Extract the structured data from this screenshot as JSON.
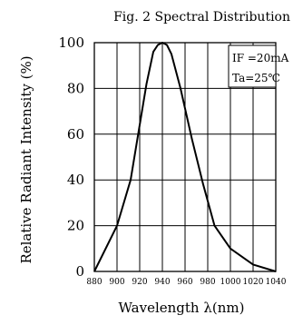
{
  "chart_data": {
    "type": "line",
    "title": "Fig. 2 Spectral Distribution",
    "xlabel": "Wavelength λ(nm)",
    "ylabel": "Relative Radiant Intensity (%)",
    "xlim": [
      880,
      1040
    ],
    "ylim": [
      0,
      100
    ],
    "xticks": [
      "880",
      "900",
      "920",
      "940",
      "960",
      "980",
      "1000",
      "1020",
      "1040"
    ],
    "yticks": [
      "0",
      "20",
      "40",
      "60",
      "80",
      "100"
    ],
    "grid": true,
    "annotations": [
      "IF =20mA",
      "Ta=25℃"
    ],
    "series": [
      {
        "x": [
          880,
          900,
          912,
          920,
          926,
          932,
          936,
          940,
          944,
          948,
          956,
          966,
          976,
          986,
          1000,
          1020,
          1040
        ],
        "y": [
          0,
          20,
          40,
          64,
          82,
          96,
          99,
          100,
          99,
          95,
          80,
          58,
          38,
          20,
          10,
          3,
          0
        ]
      }
    ]
  },
  "colors": {
    "line": "#000000",
    "grid": "#000000",
    "background": "#ffffff"
  }
}
